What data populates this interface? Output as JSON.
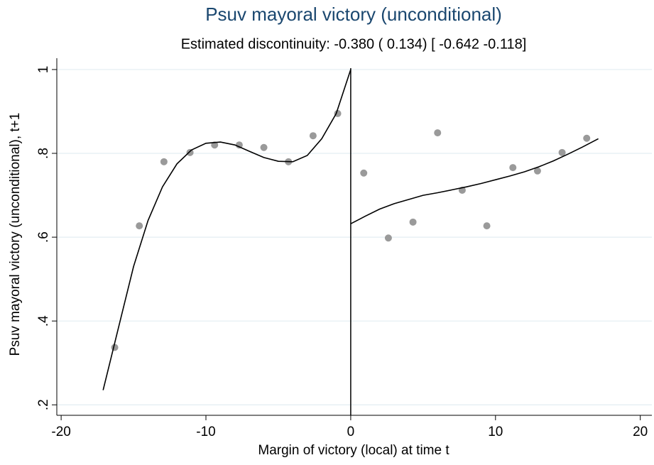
{
  "chart_data": {
    "type": "scatter",
    "title": "Psuv mayoral victory (unconditional)",
    "subtitle": "Estimated discontinuity: -0.380 ( 0.134) [ -0.642 -0.118]",
    "x_label": "Margin of victory (local) at time t",
    "y_label": "Psuv mayoral victory (unconditional), t+1",
    "xlim": [
      -20.3,
      20.8
    ],
    "ylim": [
      0.175,
      1.027
    ],
    "xticks": [
      -20,
      -10,
      0,
      10,
      20
    ],
    "yticks": [
      {
        "value": 0.2,
        "label": ".2"
      },
      {
        "value": 0.4,
        "label": ".4"
      },
      {
        "value": 0.6,
        "label": ".6"
      },
      {
        "value": 0.8,
        "label": ".8"
      },
      1
    ],
    "grid": true,
    "cutoff": 0,
    "series": [
      {
        "mode": "markers",
        "color": "#9a9a9a",
        "x": [
          -16.3,
          -14.6,
          -12.9,
          -11.1,
          -9.4,
          -7.7,
          -6.0,
          -4.3,
          -2.6,
          -0.9,
          0.9,
          2.6,
          4.3,
          6.0,
          7.7,
          9.4,
          11.2,
          12.9,
          14.6,
          16.3
        ],
        "values": [
          0.337,
          0.627,
          0.78,
          0.802,
          0.82,
          0.82,
          0.814,
          0.78,
          0.842,
          0.895,
          0.753,
          0.598,
          0.636,
          0.849,
          0.712,
          0.627,
          0.766,
          0.758,
          0.802,
          0.836
        ]
      },
      {
        "mode": "line",
        "color": "#000000",
        "x": [
          -17.1,
          -16,
          -15,
          -14,
          -13,
          -12,
          -11,
          -10,
          -9,
          -8,
          -7,
          -6,
          -5,
          -4,
          -3,
          -2,
          -1,
          0
        ],
        "values": [
          0.235,
          0.39,
          0.53,
          0.64,
          0.72,
          0.775,
          0.808,
          0.824,
          0.827,
          0.82,
          0.805,
          0.79,
          0.781,
          0.78,
          0.795,
          0.835,
          0.895,
          1.0
        ]
      },
      {
        "mode": "line",
        "color": "#000000",
        "x": [
          0,
          1,
          2,
          3,
          4,
          5,
          6,
          7,
          8,
          9,
          10,
          11,
          12,
          13,
          14,
          15,
          16,
          17.1
        ],
        "values": [
          0.632,
          0.65,
          0.667,
          0.68,
          0.69,
          0.7,
          0.706,
          0.713,
          0.72,
          0.728,
          0.737,
          0.746,
          0.756,
          0.768,
          0.782,
          0.798,
          0.815,
          0.835
        ]
      }
    ]
  }
}
